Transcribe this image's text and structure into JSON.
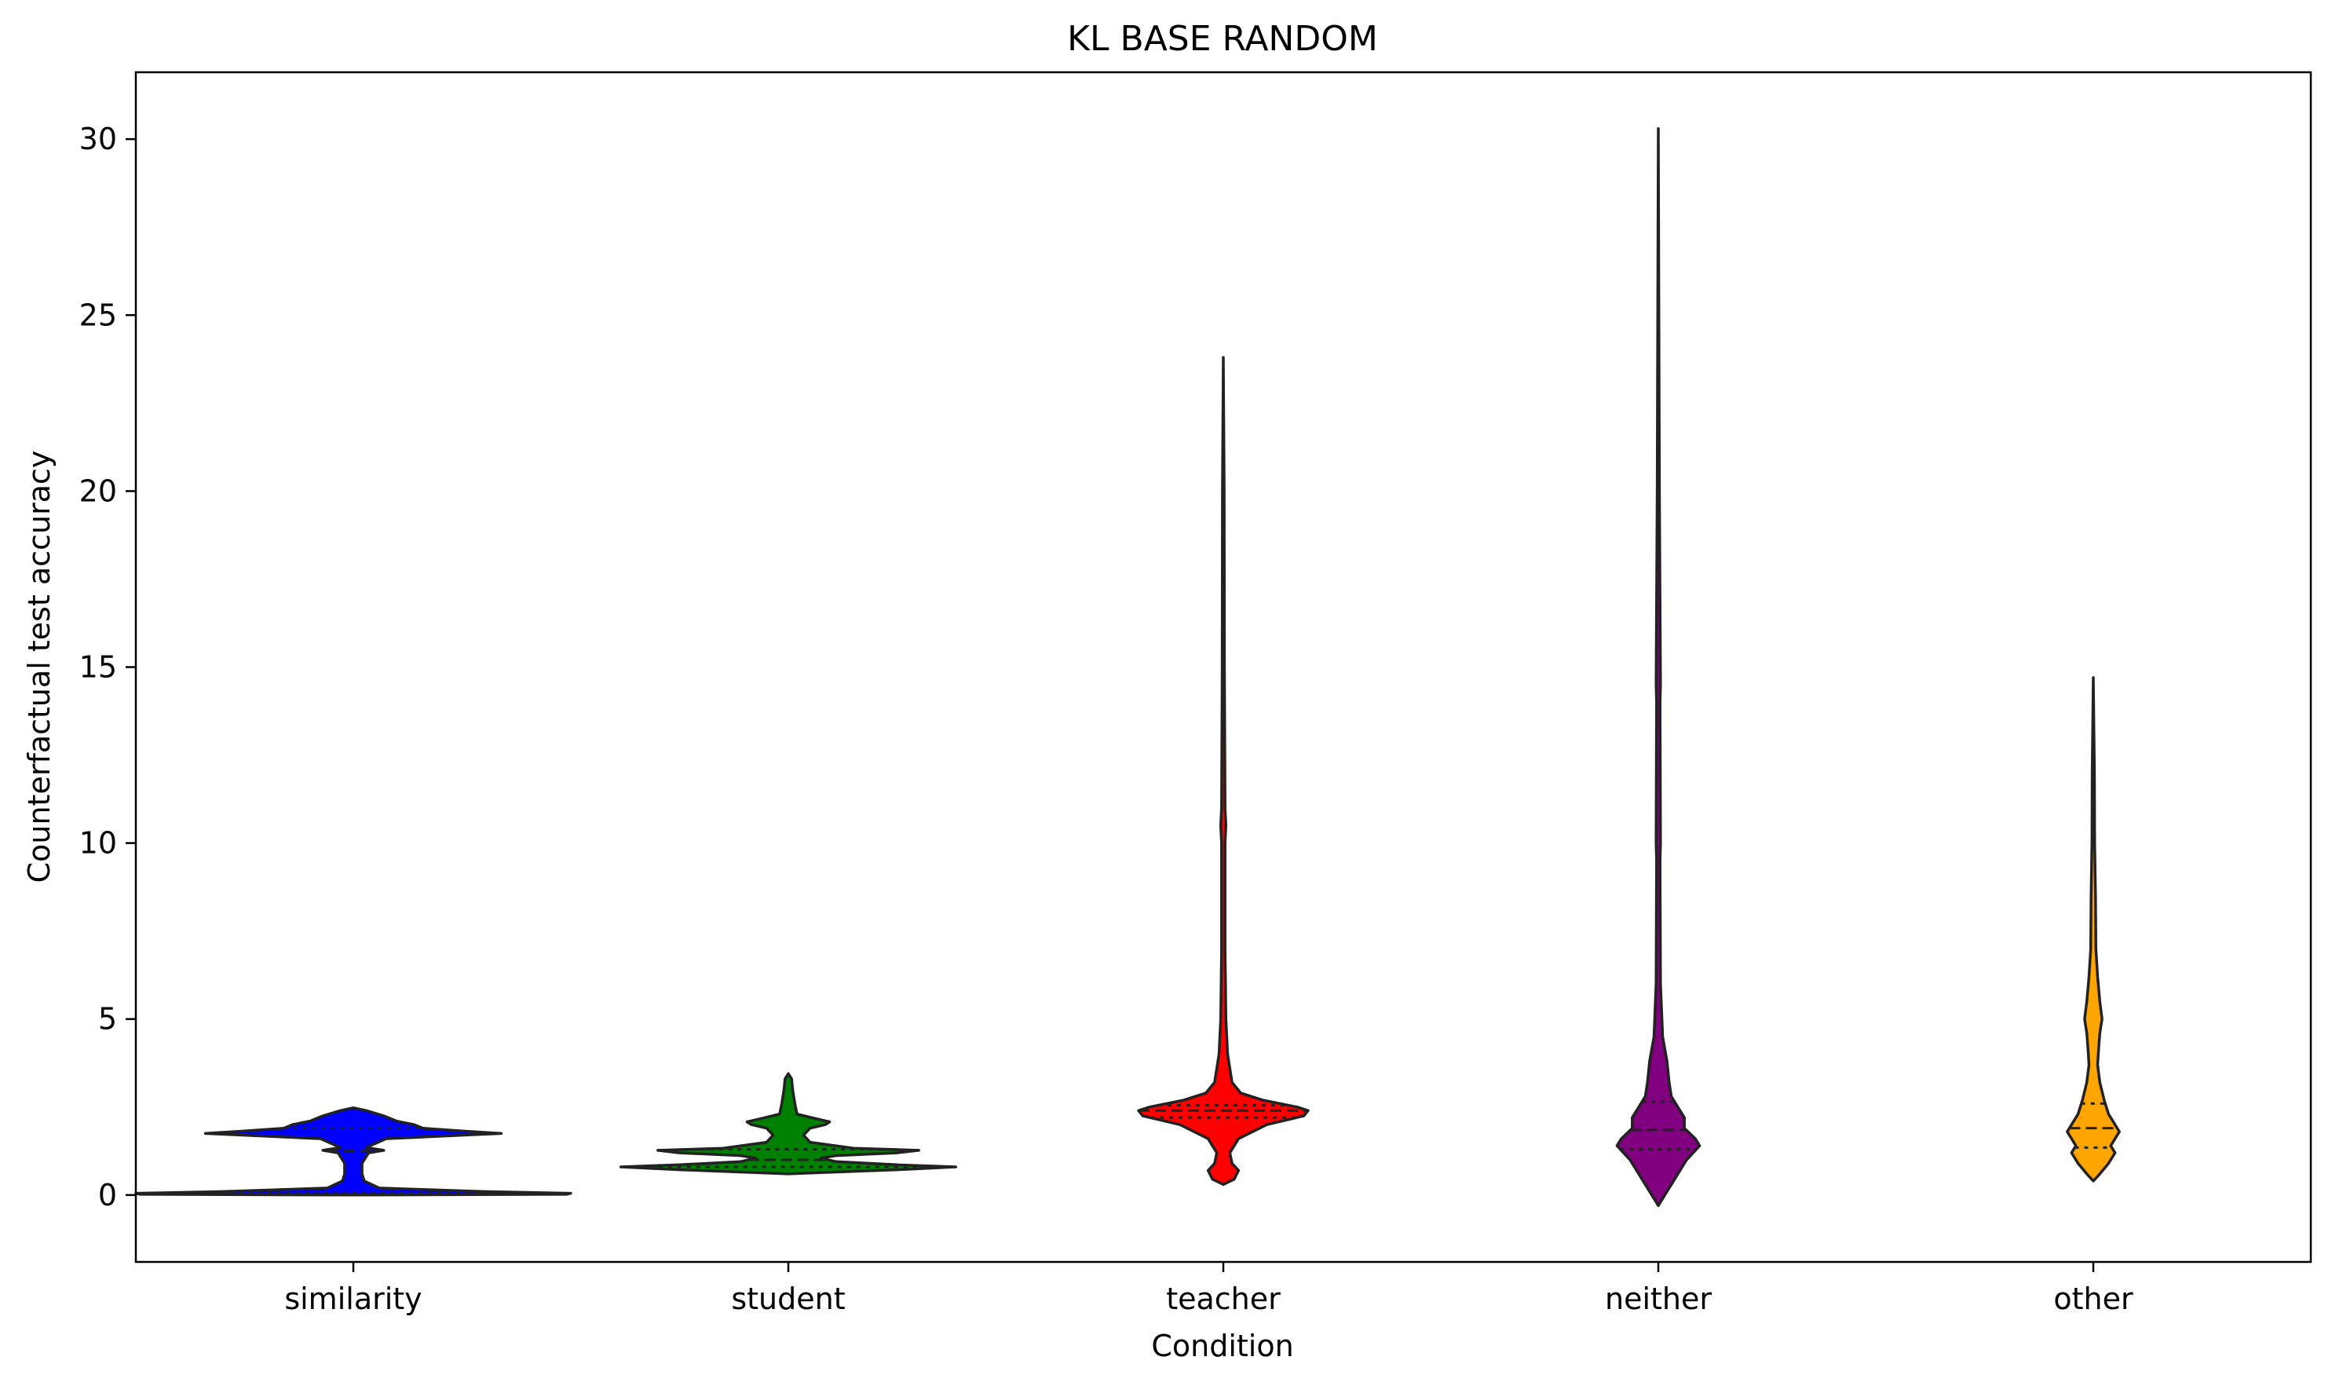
{
  "chart_data": {
    "type": "violin",
    "title": "KL BASE RANDOM",
    "xlabel": "Condition",
    "ylabel": "Counterfactual test accuracy",
    "ylim": [
      -1.9,
      31.9
    ],
    "yticks": [
      0,
      5,
      10,
      15,
      20,
      25,
      30
    ],
    "grid": false,
    "legend": "none",
    "inner": "quartile",
    "categories": [
      "similarity",
      "student",
      "teacher",
      "neither",
      "other"
    ],
    "colors": [
      "#0000ff",
      "#008000",
      "#ff0000",
      "#800080",
      "#ffa500"
    ],
    "series": [
      {
        "category": "similarity",
        "quartiles": [
          0.05,
          1.25,
          1.9
        ],
        "density": [
          [
            0.0,
            0.0
          ],
          [
            0.02,
            0.98
          ],
          [
            0.05,
            1.0
          ],
          [
            0.1,
            0.6
          ],
          [
            0.2,
            0.12
          ],
          [
            0.4,
            0.05
          ],
          [
            0.6,
            0.04
          ],
          [
            0.9,
            0.04
          ],
          [
            1.2,
            0.07
          ],
          [
            1.27,
            0.14
          ],
          [
            1.35,
            0.06
          ],
          [
            1.6,
            0.15
          ],
          [
            1.7,
            0.5
          ],
          [
            1.75,
            0.68
          ],
          [
            1.82,
            0.5
          ],
          [
            1.9,
            0.32
          ],
          [
            2.0,
            0.28
          ],
          [
            2.1,
            0.2
          ],
          [
            2.25,
            0.14
          ],
          [
            2.4,
            0.06
          ],
          [
            2.48,
            0.0
          ]
        ]
      },
      {
        "category": "student",
        "quartiles": [
          0.8,
          1.0,
          1.3
        ],
        "density": [
          [
            0.6,
            0.0
          ],
          [
            0.65,
            0.2
          ],
          [
            0.72,
            0.5
          ],
          [
            0.8,
            0.77
          ],
          [
            0.86,
            0.5
          ],
          [
            0.95,
            0.22
          ],
          [
            1.05,
            0.15
          ],
          [
            1.12,
            0.22
          ],
          [
            1.2,
            0.5
          ],
          [
            1.27,
            0.6
          ],
          [
            1.33,
            0.3
          ],
          [
            1.5,
            0.1
          ],
          [
            1.7,
            0.07
          ],
          [
            1.9,
            0.1
          ],
          [
            2.0,
            0.17
          ],
          [
            2.08,
            0.19
          ],
          [
            2.18,
            0.12
          ],
          [
            2.3,
            0.04
          ],
          [
            2.6,
            0.03
          ],
          [
            3.0,
            0.02
          ],
          [
            3.3,
            0.015
          ],
          [
            3.45,
            0.0
          ]
        ]
      },
      {
        "category": "teacher",
        "quartiles": [
          2.2,
          2.4,
          2.55
        ],
        "density": [
          [
            0.3,
            0.0
          ],
          [
            0.45,
            0.05
          ],
          [
            0.7,
            0.07
          ],
          [
            0.9,
            0.04
          ],
          [
            1.2,
            0.03
          ],
          [
            1.6,
            0.07
          ],
          [
            2.0,
            0.2
          ],
          [
            2.25,
            0.37
          ],
          [
            2.4,
            0.39
          ],
          [
            2.5,
            0.34
          ],
          [
            2.7,
            0.18
          ],
          [
            2.9,
            0.08
          ],
          [
            3.2,
            0.04
          ],
          [
            3.6,
            0.03
          ],
          [
            4.0,
            0.02
          ],
          [
            5.0,
            0.012
          ],
          [
            7.0,
            0.008
          ],
          [
            10.0,
            0.008
          ],
          [
            10.5,
            0.012
          ],
          [
            11.0,
            0.008
          ],
          [
            15.0,
            0.005
          ],
          [
            20.0,
            0.004
          ],
          [
            23.8,
            0.0
          ]
        ]
      },
      {
        "category": "neither",
        "quartiles": [
          1.3,
          1.85,
          2.65
        ],
        "density": [
          [
            -0.3,
            0.0
          ],
          [
            0.0,
            0.03
          ],
          [
            0.3,
            0.06
          ],
          [
            0.7,
            0.1
          ],
          [
            1.0,
            0.13
          ],
          [
            1.4,
            0.19
          ],
          [
            1.6,
            0.17
          ],
          [
            1.9,
            0.12
          ],
          [
            2.2,
            0.12
          ],
          [
            2.5,
            0.09
          ],
          [
            2.8,
            0.06
          ],
          [
            3.2,
            0.05
          ],
          [
            3.8,
            0.04
          ],
          [
            4.5,
            0.02
          ],
          [
            6.0,
            0.01
          ],
          [
            9.5,
            0.008
          ],
          [
            10.0,
            0.01
          ],
          [
            14.0,
            0.008
          ],
          [
            14.5,
            0.01
          ],
          [
            20.0,
            0.005
          ],
          [
            30.3,
            0.0
          ]
        ]
      },
      {
        "category": "other",
        "quartiles": [
          1.35,
          1.9,
          2.6
        ],
        "density": [
          [
            0.4,
            0.0
          ],
          [
            0.6,
            0.03
          ],
          [
            0.9,
            0.07
          ],
          [
            1.2,
            0.1
          ],
          [
            1.4,
            0.08
          ],
          [
            1.6,
            0.1
          ],
          [
            1.8,
            0.12
          ],
          [
            2.0,
            0.1
          ],
          [
            2.3,
            0.07
          ],
          [
            2.7,
            0.05
          ],
          [
            3.2,
            0.03
          ],
          [
            3.7,
            0.02
          ],
          [
            4.2,
            0.025
          ],
          [
            4.6,
            0.03
          ],
          [
            5.0,
            0.04
          ],
          [
            5.5,
            0.03
          ],
          [
            6.2,
            0.02
          ],
          [
            7.0,
            0.012
          ],
          [
            8.5,
            0.01
          ],
          [
            10.0,
            0.006
          ],
          [
            12.0,
            0.005
          ],
          [
            14.7,
            0.0
          ]
        ]
      }
    ]
  }
}
